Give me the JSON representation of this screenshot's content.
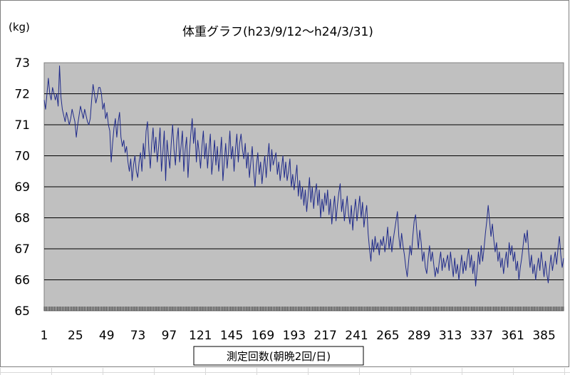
{
  "chart_data": {
    "type": "line",
    "title": "体重グラフ(h23/9/12〜h24/3/31)",
    "ylabel": "(kg)",
    "xlabel": "測定回数(朝晩2回/日)",
    "ylim": [
      65,
      73
    ],
    "yticks": [
      65,
      66,
      67,
      68,
      69,
      70,
      71,
      72,
      73
    ],
    "xlim": [
      1,
      400
    ],
    "xticks": [
      1,
      25,
      49,
      73,
      97,
      121,
      145,
      169,
      193,
      217,
      241,
      265,
      289,
      313,
      337,
      361,
      385
    ],
    "grid": true,
    "legend": "none",
    "colors": {
      "plot_bg": "#c0c0c0",
      "line": "#1f2a8a",
      "grid": "#000000"
    },
    "series": [
      {
        "values": [
          71.8,
          71.5,
          72.0,
          72.5,
          72.0,
          71.8,
          72.2,
          72.0,
          71.8,
          72.0,
          71.6,
          72.9,
          71.9,
          71.5,
          71.3,
          71.1,
          71.4,
          71.2,
          71.0,
          71.2,
          71.5,
          71.3,
          71.1,
          70.6,
          71.0,
          71.3,
          71.6,
          71.4,
          71.2,
          71.5,
          71.3,
          71.1,
          71.0,
          71.2,
          71.8,
          72.3,
          72.0,
          71.7,
          71.9,
          72.2,
          72.2,
          72.0,
          71.5,
          71.7,
          71.2,
          71.4,
          71.0,
          70.8,
          69.8,
          70.4,
          70.9,
          71.2,
          70.6,
          71.1,
          71.4,
          70.6,
          70.3,
          70.5,
          70.1,
          70.3,
          69.8,
          69.5,
          69.9,
          69.2,
          69.7,
          70.0,
          69.5,
          69.3,
          69.8,
          70.1,
          69.5,
          70.4,
          69.9,
          70.8,
          71.1,
          70.2,
          69.6,
          70.4,
          70.9,
          70.1,
          70.6,
          69.8,
          70.3,
          70.9,
          69.5,
          70.1,
          70.8,
          69.2,
          70.5,
          70.0,
          69.6,
          70.4,
          71.0,
          70.2,
          69.7,
          70.5,
          70.9,
          69.8,
          70.3,
          70.8,
          69.5,
          70.2,
          70.6,
          69.3,
          70.1,
          70.7,
          71.2,
          70.4,
          70.9,
          69.8,
          70.5,
          70.1,
          69.6,
          70.3,
          70.8,
          69.9,
          70.4,
          69.6,
          70.2,
          70.7,
          69.4,
          69.9,
          70.5,
          69.7,
          70.3,
          69.5,
          70.0,
          70.6,
          69.2,
          69.8,
          70.4,
          69.6,
          70.1,
          70.8,
          69.9,
          70.3,
          69.5,
          70.2,
          70.7,
          69.8,
          70.4,
          70.7,
          70.2,
          69.9,
          70.4,
          69.6,
          70.1,
          69.3,
          69.8,
          70.3,
          69.5,
          69.0,
          69.7,
          70.1,
          69.4,
          69.8,
          69.1,
          69.6,
          70.0,
          69.3,
          69.9,
          70.4,
          69.5,
          70.2,
          69.7,
          69.9,
          70.1,
          69.4,
          69.8,
          69.2,
          69.6,
          70.0,
          69.3,
          69.8,
          69.2,
          69.5,
          69.9,
          69.0,
          69.4,
          68.9,
          69.3,
          69.7,
          68.7,
          69.2,
          68.6,
          69.0,
          68.4,
          68.9,
          68.2,
          68.7,
          69.3,
          68.5,
          69.0,
          68.3,
          68.8,
          69.1,
          68.4,
          68.9,
          68.0,
          68.6,
          68.2,
          68.8,
          68.4,
          68.9,
          68.1,
          68.6,
          67.8,
          68.3,
          68.7,
          67.9,
          68.4,
          68.8,
          69.1,
          68.2,
          68.6,
          67.9,
          68.3,
          68.7,
          68.1,
          67.8,
          68.4,
          67.6,
          68.2,
          68.6,
          67.9,
          68.3,
          68.7,
          68.0,
          68.5,
          67.7,
          68.1,
          68.4,
          67.5,
          67.0,
          66.6,
          67.3,
          66.9,
          67.4,
          67.0,
          67.2,
          66.8,
          67.3,
          67.1,
          67.4,
          66.9,
          67.2,
          67.7,
          67.0,
          67.4,
          66.9,
          67.3,
          67.6,
          67.9,
          68.2,
          67.4,
          67.0,
          67.5,
          67.1,
          66.8,
          66.4,
          66.1,
          66.6,
          67.1,
          66.8,
          67.4,
          67.9,
          68.1,
          67.5,
          67.0,
          67.6,
          67.2,
          66.6,
          66.9,
          66.4,
          66.2,
          66.7,
          67.1,
          66.6,
          66.9,
          66.5,
          66.1,
          66.4,
          66.2,
          66.6,
          66.9,
          66.3,
          66.7,
          66.4,
          66.6,
          66.8,
          66.3,
          66.9,
          66.5,
          66.1,
          66.7,
          66.2,
          66.5,
          66.0,
          66.4,
          66.8,
          66.2,
          66.6,
          66.3,
          66.7,
          67.0,
          66.4,
          66.8,
          66.2,
          66.6,
          65.8,
          66.3,
          66.9,
          66.5,
          67.1,
          66.6,
          67.0,
          67.5,
          67.9,
          68.4,
          67.9,
          67.4,
          67.8,
          67.3,
          66.9,
          67.2,
          66.6,
          66.9,
          66.4,
          66.7,
          66.2,
          66.6,
          66.9,
          66.4,
          67.2,
          66.8,
          67.1,
          66.6,
          66.9,
          66.3,
          66.6,
          66.0,
          66.4,
          66.7,
          67.1,
          67.5,
          67.2,
          67.6,
          66.9,
          66.4,
          66.8,
          66.2,
          66.5,
          66.0,
          66.4,
          66.7,
          66.3,
          66.9,
          66.5,
          66.1,
          66.6,
          66.2,
          65.9,
          66.4,
          66.8,
          66.3,
          66.6,
          66.9,
          66.5,
          67.0,
          67.4,
          66.8,
          66.4,
          66.7
        ]
      }
    ]
  }
}
